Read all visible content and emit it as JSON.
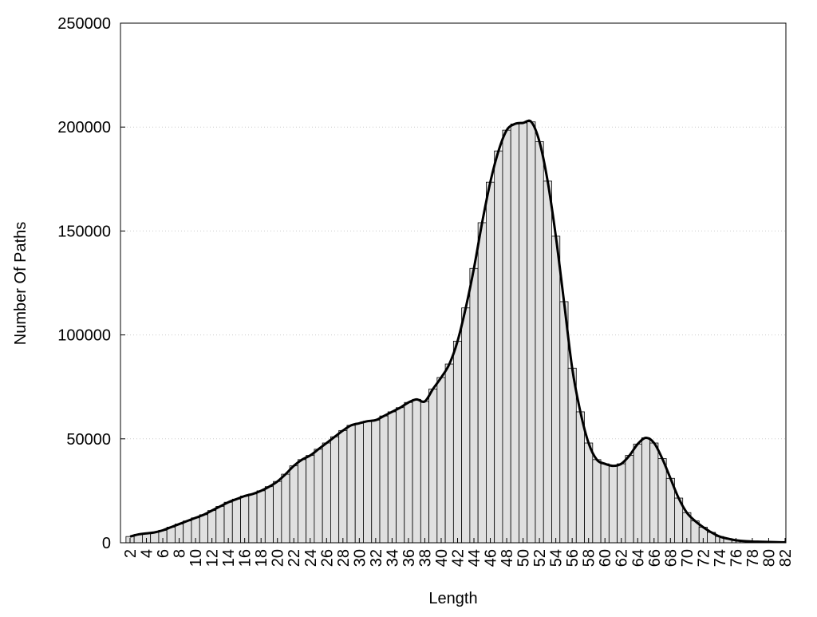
{
  "chart_data": {
    "type": "histogram-line",
    "x_label": "Length",
    "y_label": "Number Of Paths",
    "x": [
      2,
      3,
      4,
      5,
      6,
      7,
      8,
      9,
      10,
      11,
      12,
      13,
      14,
      15,
      16,
      17,
      18,
      19,
      20,
      21,
      22,
      23,
      24,
      25,
      26,
      27,
      28,
      29,
      30,
      31,
      32,
      33,
      34,
      35,
      36,
      37,
      38,
      39,
      40,
      41,
      42,
      43,
      44,
      45,
      46,
      47,
      48,
      49,
      50,
      51,
      52,
      53,
      54,
      55,
      56,
      57,
      58,
      59,
      60,
      61,
      62,
      63,
      64,
      65,
      66,
      67,
      68,
      69,
      70,
      71,
      72,
      73,
      74,
      75,
      76,
      77,
      78,
      79,
      80,
      81,
      82
    ],
    "values": [
      3000,
      4000,
      4500,
      5000,
      6000,
      7500,
      9000,
      10500,
      12000,
      13500,
      15500,
      17500,
      19500,
      21000,
      22500,
      23500,
      25000,
      27000,
      29500,
      33000,
      37000,
      40000,
      42000,
      45000,
      48000,
      51000,
      54000,
      56500,
      57500,
      58500,
      59000,
      61000,
      63000,
      65000,
      67500,
      69000,
      68000,
      74000,
      79500,
      86000,
      97000,
      113000,
      132000,
      154000,
      173500,
      188500,
      198500,
      201500,
      202000,
      202500,
      193000,
      174000,
      147500,
      116000,
      84000,
      63000,
      48000,
      40000,
      38000,
      37000,
      38000,
      42000,
      47500,
      50500,
      48000,
      40500,
      31000,
      21500,
      14500,
      10500,
      7500,
      5000,
      3000,
      2000,
      1200,
      800,
      600,
      500,
      400,
      300,
      200
    ],
    "bar_color": "#e0e0e0",
    "line_color": "#000000",
    "line": true,
    "xlim": [
      0.83,
      82.1
    ],
    "xticks": [
      2,
      4,
      6,
      8,
      10,
      12,
      14,
      16,
      18,
      20,
      22,
      24,
      26,
      28,
      30,
      32,
      34,
      36,
      38,
      40,
      42,
      44,
      46,
      48,
      50,
      52,
      54,
      56,
      58,
      60,
      62,
      64,
      66,
      68,
      70,
      72,
      74,
      76,
      78,
      80,
      82
    ],
    "ylim": [
      0,
      250000
    ],
    "yticks": [
      0,
      50000,
      100000,
      150000,
      200000,
      250000
    ],
    "grid": true
  }
}
